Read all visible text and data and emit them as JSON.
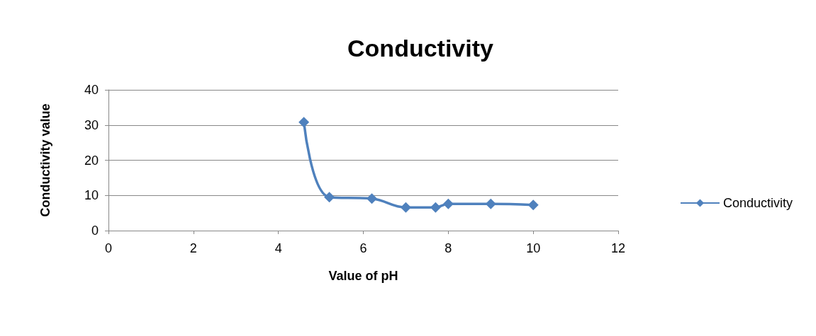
{
  "chart_data": {
    "type": "line",
    "title": "Conductivity",
    "xlabel": "Value of pH",
    "ylabel": "Conductivity value",
    "series": [
      {
        "name": "Conductivity",
        "color": "#4f81bd",
        "x": [
          4.6,
          5.2,
          6.2,
          7.0,
          7.7,
          8.0,
          9.0,
          10.0
        ],
        "values": [
          30.8,
          9.5,
          9.1,
          6.6,
          6.6,
          7.6,
          7.6,
          7.3
        ]
      }
    ],
    "xlim": [
      0,
      12
    ],
    "xticks": [
      0,
      2,
      4,
      6,
      8,
      10,
      12
    ],
    "ylim": [
      0,
      40
    ],
    "yticks": [
      0,
      10,
      20,
      30,
      40
    ],
    "grid": "y",
    "legend": "right",
    "marker": "diamond",
    "line_style": "solid"
  }
}
